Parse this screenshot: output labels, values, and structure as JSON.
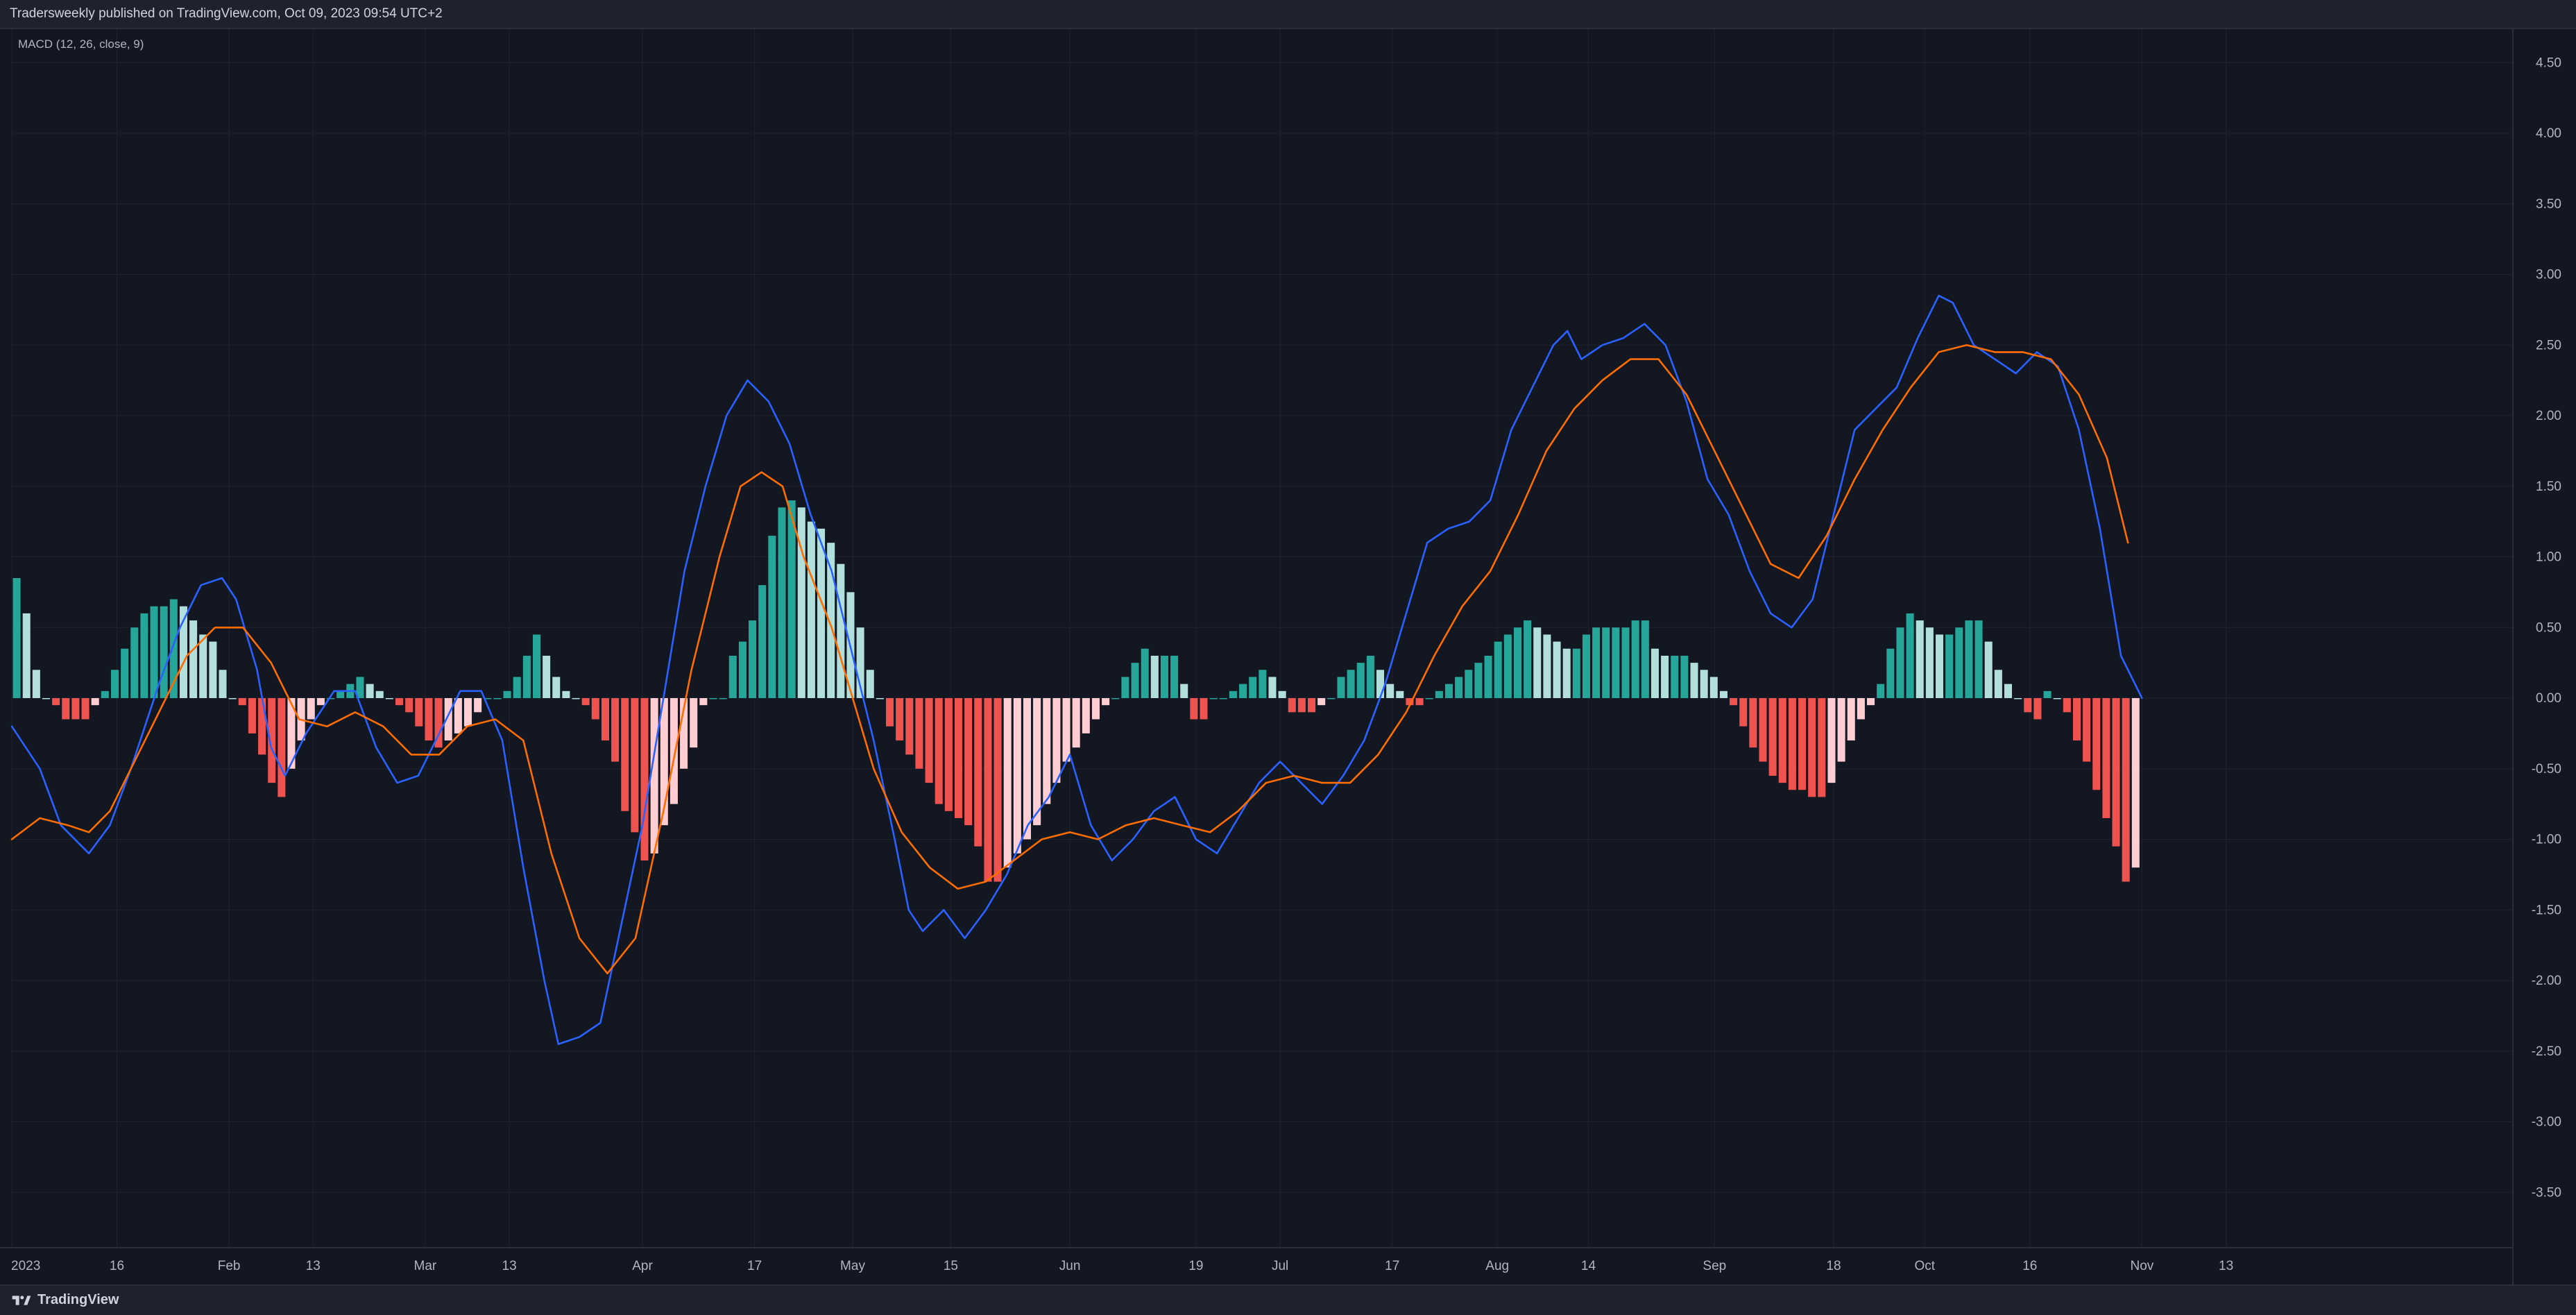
{
  "header": {
    "publish_text": "Tradersweekly published on TradingView.com, Oct 09, 2023 09:54 UTC+2"
  },
  "indicator": {
    "legend": "MACD (12, 26, close, 9)"
  },
  "footer": {
    "logo_text": "TradingView"
  },
  "colors": {
    "background": "#131722",
    "grid": "#1f2330",
    "macd_line": "#2962ff",
    "signal_line": "#ff6d00",
    "hist_pos_strong": "#26a69a",
    "hist_pos_weak": "#b2dfdb",
    "hist_neg_strong": "#ef5350",
    "hist_neg_weak": "#ffcdd2"
  },
  "icons": {
    "logo": "tradingview-logo-icon"
  },
  "chart_data": {
    "type": "line",
    "title": "MACD (12, 26, close, 9)",
    "ylim": [
      -3.9,
      4.7
    ],
    "y_ticks": [
      "4.50",
      "4.00",
      "3.50",
      "3.00",
      "2.50",
      "2.00",
      "1.50",
      "1.00",
      "0.50",
      "0.00",
      "-0.50",
      "-1.00",
      "-1.50",
      "-2.00",
      "-2.50",
      "-3.00",
      "-3.50"
    ],
    "x_ticks": [
      "2023",
      "16",
      "Feb",
      "13",
      "Mar",
      "13",
      "Apr",
      "17",
      "May",
      "15",
      "Jun",
      "19",
      "Jul",
      "17",
      "Aug",
      "14",
      "Sep",
      "18",
      "Oct",
      "16",
      "Nov",
      "13"
    ],
    "x_tick_days": [
      1,
      16,
      32,
      44,
      60,
      72,
      91,
      107,
      121,
      135,
      152,
      170,
      182,
      198,
      213,
      226,
      244,
      261,
      274,
      289,
      305,
      317
    ],
    "date_range_days": [
      1,
      352
    ],
    "grid": true,
    "series": [
      {
        "kind": "line",
        "points": [
          [
            1,
            -0.2
          ],
          [
            5,
            -0.5
          ],
          [
            8,
            -0.9
          ],
          [
            12,
            -1.1
          ],
          [
            15,
            -0.9
          ],
          [
            18,
            -0.5
          ],
          [
            22,
            0.1
          ],
          [
            25,
            0.5
          ],
          [
            28,
            0.8
          ],
          [
            31,
            0.85
          ],
          [
            33,
            0.7
          ],
          [
            36,
            0.2
          ],
          [
            38,
            -0.35
          ],
          [
            40,
            -0.55
          ],
          [
            43,
            -0.25
          ],
          [
            47,
            0.05
          ],
          [
            50,
            0.05
          ],
          [
            53,
            -0.35
          ],
          [
            56,
            -0.6
          ],
          [
            59,
            -0.55
          ],
          [
            62,
            -0.25
          ],
          [
            65,
            0.05
          ],
          [
            68,
            0.05
          ],
          [
            71,
            -0.3
          ],
          [
            74,
            -1.2
          ],
          [
            77,
            -2.0
          ],
          [
            79,
            -2.45
          ],
          [
            82,
            -2.4
          ],
          [
            85,
            -2.3
          ],
          [
            88,
            -1.6
          ],
          [
            91,
            -0.9
          ],
          [
            94,
            0.0
          ],
          [
            97,
            0.9
          ],
          [
            100,
            1.5
          ],
          [
            103,
            2.0
          ],
          [
            106,
            2.25
          ],
          [
            109,
            2.1
          ],
          [
            112,
            1.8
          ],
          [
            115,
            1.3
          ],
          [
            118,
            0.9
          ],
          [
            121,
            0.3
          ],
          [
            124,
            -0.3
          ],
          [
            127,
            -1.0
          ],
          [
            129,
            -1.5
          ],
          [
            131,
            -1.65
          ],
          [
            134,
            -1.5
          ],
          [
            137,
            -1.7
          ],
          [
            140,
            -1.5
          ],
          [
            143,
            -1.25
          ],
          [
            146,
            -0.9
          ],
          [
            149,
            -0.7
          ],
          [
            152,
            -0.4
          ],
          [
            155,
            -0.9
          ],
          [
            158,
            -1.15
          ],
          [
            161,
            -1.0
          ],
          [
            164,
            -0.8
          ],
          [
            167,
            -0.7
          ],
          [
            170,
            -1.0
          ],
          [
            173,
            -1.1
          ],
          [
            176,
            -0.85
          ],
          [
            179,
            -0.6
          ],
          [
            182,
            -0.45
          ],
          [
            185,
            -0.6
          ],
          [
            188,
            -0.75
          ],
          [
            191,
            -0.55
          ],
          [
            194,
            -0.3
          ],
          [
            197,
            0.1
          ],
          [
            200,
            0.6
          ],
          [
            203,
            1.1
          ],
          [
            206,
            1.2
          ],
          [
            209,
            1.25
          ],
          [
            212,
            1.4
          ],
          [
            215,
            1.9
          ],
          [
            218,
            2.2
          ],
          [
            221,
            2.5
          ],
          [
            223,
            2.6
          ],
          [
            225,
            2.4
          ],
          [
            228,
            2.5
          ],
          [
            231,
            2.55
          ],
          [
            234,
            2.65
          ],
          [
            237,
            2.5
          ],
          [
            240,
            2.1
          ],
          [
            243,
            1.55
          ],
          [
            246,
            1.3
          ],
          [
            249,
            0.9
          ],
          [
            252,
            0.6
          ],
          [
            255,
            0.5
          ],
          [
            258,
            0.7
          ],
          [
            261,
            1.3
          ],
          [
            264,
            1.9
          ],
          [
            267,
            2.05
          ],
          [
            270,
            2.2
          ],
          [
            273,
            2.55
          ],
          [
            276,
            2.85
          ],
          [
            278,
            2.8
          ],
          [
            281,
            2.5
          ],
          [
            284,
            2.4
          ],
          [
            287,
            2.3
          ],
          [
            290,
            2.45
          ],
          [
            293,
            2.35
          ],
          [
            296,
            1.9
          ],
          [
            299,
            1.2
          ],
          [
            302,
            0.3
          ],
          [
            305,
            0.0
          ]
        ]
      },
      {
        "kind": "line",
        "points": [
          [
            1,
            -1.0
          ],
          [
            5,
            -0.85
          ],
          [
            9,
            -0.9
          ],
          [
            12,
            -0.95
          ],
          [
            15,
            -0.8
          ],
          [
            18,
            -0.5
          ],
          [
            22,
            -0.1
          ],
          [
            26,
            0.3
          ],
          [
            30,
            0.5
          ],
          [
            34,
            0.5
          ],
          [
            38,
            0.25
          ],
          [
            42,
            -0.15
          ],
          [
            46,
            -0.2
          ],
          [
            50,
            -0.1
          ],
          [
            54,
            -0.2
          ],
          [
            58,
            -0.4
          ],
          [
            62,
            -0.4
          ],
          [
            66,
            -0.2
          ],
          [
            70,
            -0.15
          ],
          [
            74,
            -0.3
          ],
          [
            78,
            -1.1
          ],
          [
            82,
            -1.7
          ],
          [
            86,
            -1.95
          ],
          [
            90,
            -1.7
          ],
          [
            94,
            -0.8
          ],
          [
            98,
            0.2
          ],
          [
            102,
            1.0
          ],
          [
            105,
            1.5
          ],
          [
            108,
            1.6
          ],
          [
            111,
            1.5
          ],
          [
            114,
            1.0
          ],
          [
            118,
            0.5
          ],
          [
            121,
            0.0
          ],
          [
            124,
            -0.5
          ],
          [
            128,
            -0.95
          ],
          [
            132,
            -1.2
          ],
          [
            136,
            -1.35
          ],
          [
            140,
            -1.3
          ],
          [
            144,
            -1.15
          ],
          [
            148,
            -1.0
          ],
          [
            152,
            -0.95
          ],
          [
            156,
            -1.0
          ],
          [
            160,
            -0.9
          ],
          [
            164,
            -0.85
          ],
          [
            168,
            -0.9
          ],
          [
            172,
            -0.95
          ],
          [
            176,
            -0.8
          ],
          [
            180,
            -0.6
          ],
          [
            184,
            -0.55
          ],
          [
            188,
            -0.6
          ],
          [
            192,
            -0.6
          ],
          [
            196,
            -0.4
          ],
          [
            200,
            -0.1
          ],
          [
            204,
            0.3
          ],
          [
            208,
            0.65
          ],
          [
            212,
            0.9
          ],
          [
            216,
            1.3
          ],
          [
            220,
            1.75
          ],
          [
            224,
            2.05
          ],
          [
            228,
            2.25
          ],
          [
            232,
            2.4
          ],
          [
            236,
            2.4
          ],
          [
            240,
            2.15
          ],
          [
            244,
            1.75
          ],
          [
            248,
            1.35
          ],
          [
            252,
            0.95
          ],
          [
            256,
            0.85
          ],
          [
            260,
            1.15
          ],
          [
            264,
            1.55
          ],
          [
            268,
            1.9
          ],
          [
            272,
            2.2
          ],
          [
            276,
            2.45
          ],
          [
            280,
            2.5
          ],
          [
            284,
            2.45
          ],
          [
            288,
            2.45
          ],
          [
            292,
            2.4
          ],
          [
            296,
            2.15
          ],
          [
            300,
            1.7
          ],
          [
            303,
            1.1
          ]
        ]
      },
      {
        "kind": "histogram",
        "values": [
          0.85,
          0.6,
          0.2,
          0,
          -0.05,
          -0.15,
          -0.15,
          -0.15,
          -0.05,
          0.05,
          0.2,
          0.35,
          0.5,
          0.6,
          0.65,
          0.65,
          0.7,
          0.65,
          0.55,
          0.45,
          0.4,
          0.2,
          0,
          -0.05,
          -0.25,
          -0.4,
          -0.6,
          -0.7,
          -0.5,
          -0.3,
          -0.15,
          -0.05,
          0,
          0.05,
          0.1,
          0.15,
          0.1,
          0.05,
          0,
          -0.05,
          -0.1,
          -0.2,
          -0.3,
          -0.35,
          -0.3,
          -0.25,
          -0.2,
          -0.1,
          0,
          0,
          0.05,
          0.15,
          0.3,
          0.45,
          0.3,
          0.15,
          0.05,
          0,
          -0.05,
          -0.15,
          -0.3,
          -0.45,
          -0.8,
          -0.95,
          -1.15,
          -1.1,
          -0.9,
          -0.75,
          -0.5,
          -0.35,
          -0.05,
          0,
          0,
          0.3,
          0.4,
          0.55,
          0.8,
          1.15,
          1.35,
          1.4,
          1.35,
          1.25,
          1.2,
          1.1,
          0.95,
          0.75,
          0.5,
          0.2,
          0,
          -0.2,
          -0.3,
          -0.4,
          -0.5,
          -0.6,
          -0.75,
          -0.8,
          -0.85,
          -0.9,
          -1.05,
          -1.3,
          -1.3,
          -1.2,
          -1.1,
          -1.0,
          -0.9,
          -0.75,
          -0.6,
          -0.45,
          -0.35,
          -0.25,
          -0.15,
          -0.05,
          0,
          0.15,
          0.25,
          0.35,
          0.3,
          0.3,
          0.3,
          0.1,
          -0.15,
          -0.15,
          0,
          0,
          0.05,
          0.1,
          0.15,
          0.2,
          0.15,
          0.05,
          -0.1,
          -0.1,
          -0.1,
          -0.05,
          0,
          0.15,
          0.2,
          0.25,
          0.3,
          0.2,
          0.1,
          0.05,
          -0.05,
          -0.05,
          0,
          0.05,
          0.1,
          0.15,
          0.2,
          0.25,
          0.3,
          0.4,
          0.45,
          0.5,
          0.55,
          0.5,
          0.45,
          0.4,
          0.35,
          0.35,
          0.45,
          0.5,
          0.5,
          0.5,
          0.5,
          0.55,
          0.55,
          0.35,
          0.3,
          0.3,
          0.3,
          0.25,
          0.2,
          0.15,
          0.05,
          -0.05,
          -0.2,
          -0.35,
          -0.45,
          -0.55,
          -0.6,
          -0.65,
          -0.65,
          -0.7,
          -0.7,
          -0.6,
          -0.45,
          -0.3,
          -0.15,
          -0.05,
          0.1,
          0.35,
          0.5,
          0.6,
          0.55,
          0.5,
          0.45,
          0.45,
          0.5,
          0.55,
          0.55,
          0.4,
          0.2,
          0.1,
          0,
          -0.1,
          -0.15,
          0.05,
          0,
          -0.1,
          -0.3,
          -0.45,
          -0.65,
          -0.85,
          -1.05,
          -1.3,
          -1.2
        ]
      }
    ]
  }
}
